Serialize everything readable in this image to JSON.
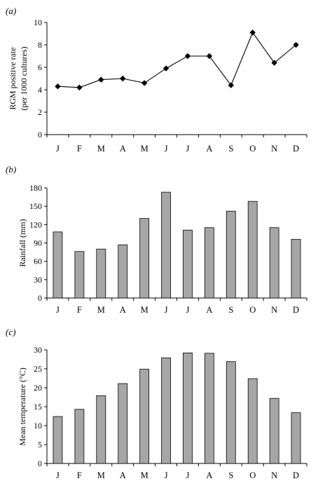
{
  "chart_data": [
    {
      "panel_label": "(a)",
      "type": "line",
      "categories": [
        "J",
        "F",
        "M",
        "A",
        "M",
        "J",
        "J",
        "A",
        "S",
        "O",
        "N",
        "D"
      ],
      "values": [
        4.3,
        4.2,
        4.9,
        5.0,
        4.6,
        5.9,
        7.0,
        7.0,
        4.4,
        9.1,
        6.4,
        8.0
      ],
      "ylabel_lines": [
        "RGM positive rate",
        "(per 1000 cultures)"
      ],
      "ylim": [
        0,
        10
      ],
      "yticks": [
        0,
        2,
        4,
        6,
        8,
        10
      ],
      "marker": "diamond",
      "line_color": "#000000",
      "grid": false
    },
    {
      "panel_label": "(b)",
      "type": "bar",
      "categories": [
        "J",
        "F",
        "M",
        "A",
        "M",
        "J",
        "J",
        "A",
        "S",
        "O",
        "N",
        "D"
      ],
      "values": [
        108,
        76,
        80,
        87,
        130,
        173,
        111,
        115,
        142,
        158,
        115,
        96
      ],
      "ylabel_lines": [
        "Rainfall (mm)"
      ],
      "ylim": [
        0,
        180
      ],
      "yticks": [
        0,
        30,
        60,
        90,
        120,
        150,
        180
      ],
      "bar_color": "#a6a6a6",
      "grid": false
    },
    {
      "panel_label": "(c)",
      "type": "bar",
      "categories": [
        "J",
        "F",
        "M",
        "A",
        "M",
        "J",
        "J",
        "A",
        "S",
        "O",
        "N",
        "D"
      ],
      "values": [
        12.4,
        14.3,
        17.9,
        21.1,
        24.9,
        27.9,
        29.2,
        29.1,
        26.9,
        22.4,
        17.2,
        13.4
      ],
      "ylabel_lines": [
        "Mean temperature (°C)"
      ],
      "ylim": [
        0,
        30
      ],
      "yticks": [
        0,
        5,
        10,
        15,
        20,
        25,
        30
      ],
      "bar_color": "#a6a6a6",
      "grid": false
    }
  ]
}
